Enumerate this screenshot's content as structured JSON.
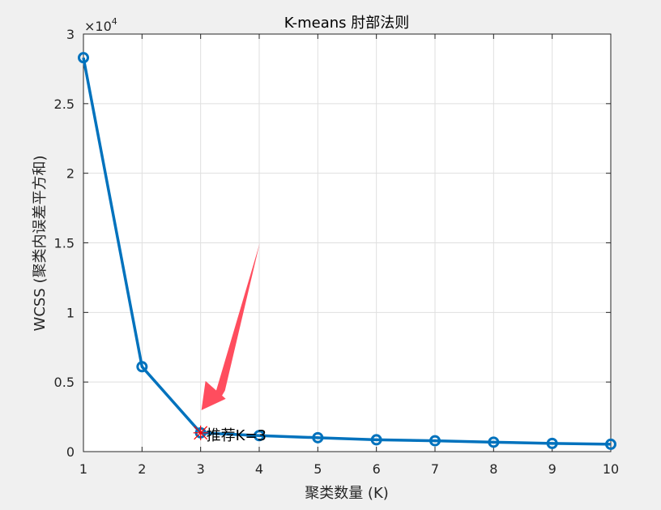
{
  "chart_data": {
    "type": "line",
    "title": "K-means 肘部法则",
    "xlabel": "聚类数量 (K)",
    "ylabel": "WCSS (聚类内误差平方和)",
    "y_exponent_label": "×10",
    "y_exponent_power": "4",
    "x_ticks": [
      "1",
      "2",
      "3",
      "4",
      "5",
      "6",
      "7",
      "8",
      "9",
      "10"
    ],
    "y_ticks": [
      "0",
      "0.5",
      "1",
      "1.5",
      "2",
      "2.5",
      "3"
    ],
    "xlim": [
      1,
      10
    ],
    "ylim": [
      0,
      30000
    ],
    "grid": true,
    "series": [
      {
        "x": [
          1,
          2,
          3,
          4,
          5,
          6,
          7,
          8,
          9,
          10
        ],
        "y": [
          28300,
          6100,
          1350,
          1150,
          1000,
          850,
          780,
          680,
          590,
          530
        ],
        "color": "#0072bd",
        "marker": "circle"
      }
    ],
    "highlight": {
      "x": 3,
      "y": 1350,
      "marker": "red-cross",
      "label": "推荐K=3",
      "arrow_color": "#ff4d5e"
    },
    "colors": {
      "figure_bg": "#f0f0f0",
      "axes_bg": "#ffffff",
      "grid": "#dfdfdf",
      "text": "#262626",
      "highlight_marker": "#ff0000"
    }
  }
}
